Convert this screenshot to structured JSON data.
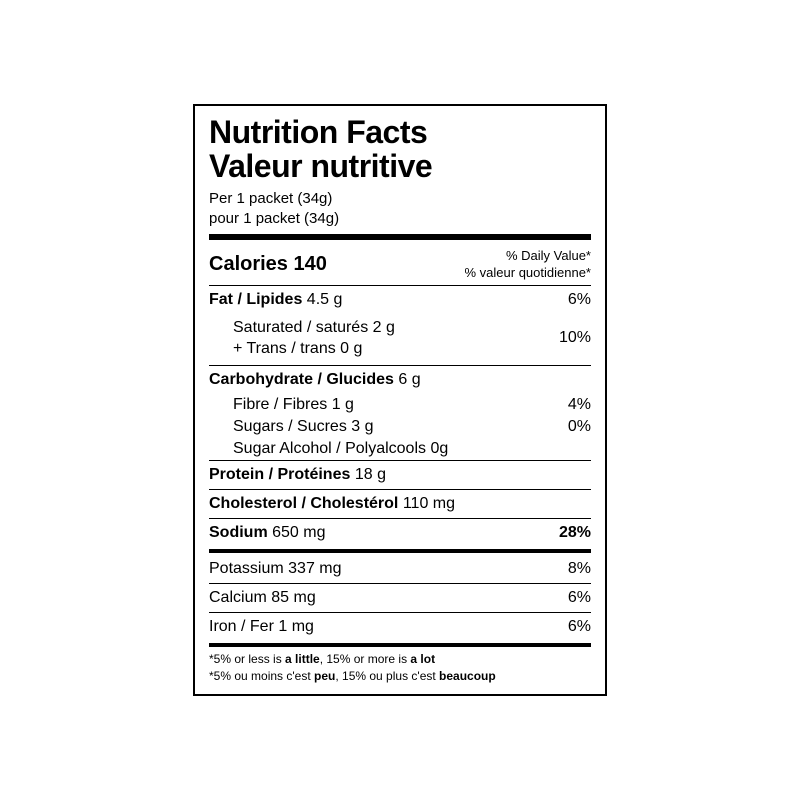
{
  "title_en": "Nutrition Facts",
  "title_fr": "Valeur nutritive",
  "serving_en": "Per 1 packet (34g)",
  "serving_fr": "pour 1 packet (34g)",
  "calories_label": "Calories",
  "calories_value": "140",
  "dv_header_en": "% Daily Value*",
  "dv_header_fr": "% valeur quotidienne*",
  "fat": {
    "name": "Fat / Lipides",
    "value": "4.5 g",
    "dv": "6%"
  },
  "sat": {
    "line1": "Saturated / saturés 2 g",
    "line2": "+ Trans / trans 0 g",
    "dv": "10%"
  },
  "carb": {
    "name": "Carbohydrate / Glucides",
    "value": "6 g"
  },
  "fibre": {
    "text": "Fibre / Fibres 1 g",
    "dv": "4%"
  },
  "sugars": {
    "text": "Sugars / Sucres 3 g",
    "dv": "0%"
  },
  "sugar_alcohol": {
    "text": "Sugar Alcohol / Polyalcools 0g"
  },
  "protein": {
    "name": "Protein / Protéines",
    "value": "18 g"
  },
  "cholesterol": {
    "name": "Cholesterol / Cholestérol",
    "value": "110 mg"
  },
  "sodium": {
    "name": "Sodium",
    "value": "650 mg",
    "dv": "28%"
  },
  "potassium": {
    "name": "Potassium",
    "value": "337 mg",
    "dv": "8%"
  },
  "calcium": {
    "name": "Calcium",
    "value": "85 mg",
    "dv": "6%"
  },
  "iron": {
    "name": "Iron / Fer",
    "value": "1 mg",
    "dv": "6%"
  },
  "foot_en_1": "*5% or less is ",
  "foot_en_b1": "a little",
  "foot_en_2": ", 15% or more is ",
  "foot_en_b2": "a lot",
  "foot_fr_1": "*5% ou moins c'est ",
  "foot_fr_b1": "peu",
  "foot_fr_2": ", 15% ou plus c'est ",
  "foot_fr_b2": "beaucoup"
}
